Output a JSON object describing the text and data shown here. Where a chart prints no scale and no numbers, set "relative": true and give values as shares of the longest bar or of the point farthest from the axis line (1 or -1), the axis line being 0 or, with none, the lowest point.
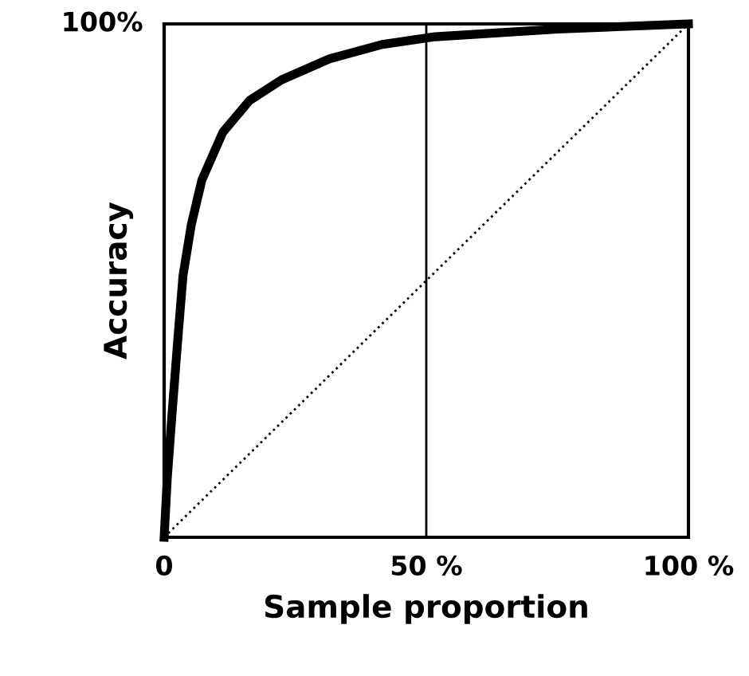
{
  "chart_data": {
    "type": "line",
    "xlabel": "Sample proportion",
    "ylabel": "Accuracy",
    "relative": true,
    "annotations": [
      "100%"
    ],
    "series": [
      {
        "color": "#000000",
        "x": [
          0,
          0.6,
          1.5,
          2.6,
          3.6,
          5.2,
          7.2,
          11.2,
          16.3,
          22.4,
          31.5,
          41.6,
          51.7,
          75,
          100
        ],
        "values": [
          0,
          0.115,
          0.24,
          0.385,
          0.51,
          0.61,
          0.696,
          0.789,
          0.851,
          0.891,
          0.932,
          0.96,
          0.975,
          0.99,
          1
        ]
      },
      {
        "color": "#000000",
        "line_style": "dotted",
        "x": [
          0,
          100
        ],
        "values": [
          0,
          1
        ]
      }
    ],
    "ref_lines": [
      {
        "axis": "x",
        "value": 50,
        "color": "#000000"
      }
    ],
    "xlim": [
      0,
      100
    ],
    "xticks": [
      0,
      {
        "value": 50,
        "label": "50 %"
      },
      {
        "value": 100,
        "label": "100 %"
      }
    ],
    "legend": false,
    "marker": "none"
  }
}
